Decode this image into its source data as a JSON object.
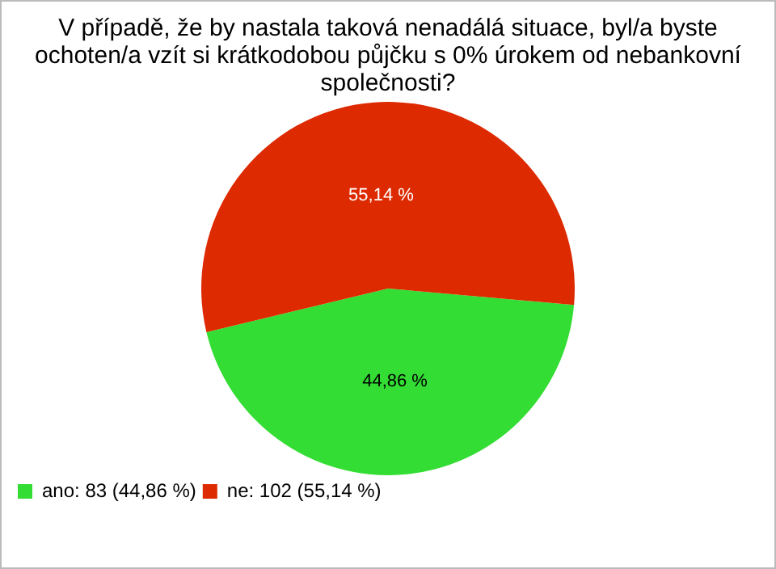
{
  "chart_data": {
    "type": "pie",
    "title": "V případě, že by nastala taková nenadálá situace, byl/a byste ochoten/a vzít si krátkodobou půjčku s 0% úrokem od nebankovní společnosti?",
    "categories": [
      "ano: 83 (44,86 %)",
      "ne: 102 (55,14 %)"
    ],
    "values": [
      44.86,
      55.14
    ],
    "colors": [
      "#33dd33",
      "#dd2a00"
    ],
    "value_labels": [
      "44,86 %",
      "55,14 %"
    ],
    "legend": "bottom left"
  }
}
